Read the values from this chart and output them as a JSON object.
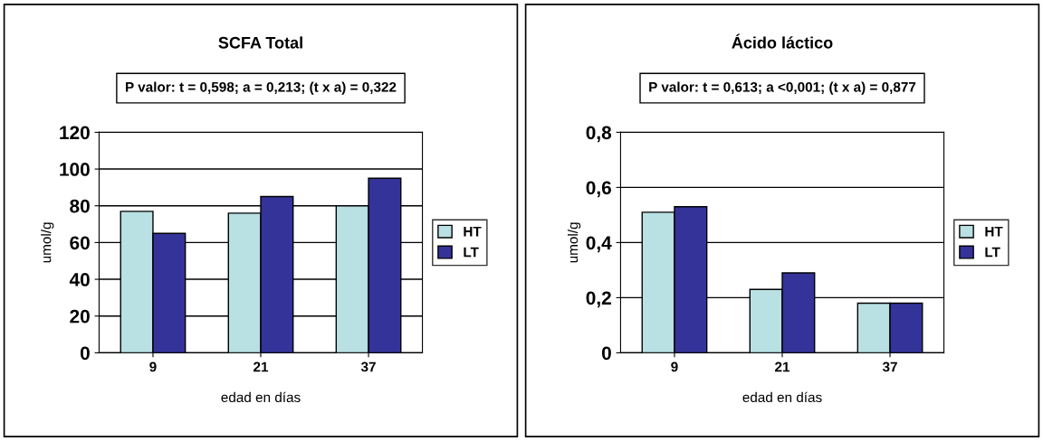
{
  "chart_data": [
    {
      "type": "bar",
      "title": "SCFA Total",
      "subtitle": "P valor: t = 0,598; a = 0,213; (t x a) = 0,322",
      "xlabel": "edad en días",
      "ylabel": "umol/g",
      "categories": [
        "9",
        "21",
        "37"
      ],
      "series": [
        {
          "name": "HT",
          "color": "#b9e0e3",
          "values": [
            77,
            76,
            80
          ]
        },
        {
          "name": "LT",
          "color": "#333399",
          "values": [
            65,
            85,
            95
          ]
        }
      ],
      "ylim": [
        0,
        120
      ],
      "yticks": [
        0,
        20,
        40,
        60,
        80,
        100,
        120
      ],
      "grid": "y",
      "legend": "right"
    },
    {
      "type": "bar",
      "title": "Ácido láctico",
      "subtitle": "P valor: t = 0,613; a <0,001; (t x a) = 0,877",
      "xlabel": "edad en días",
      "ylabel": "umol/g",
      "categories": [
        "9",
        "21",
        "37"
      ],
      "series": [
        {
          "name": "HT",
          "color": "#b9e0e3",
          "values": [
            0.51,
            0.23,
            0.18
          ]
        },
        {
          "name": "LT",
          "color": "#333399",
          "values": [
            0.53,
            0.29,
            0.18
          ]
        }
      ],
      "ylim": [
        0,
        0.8
      ],
      "yticks": [
        {
          "value": 0,
          "label": "0"
        },
        {
          "value": 0.2,
          "label": "0,2"
        },
        {
          "value": 0.4,
          "label": "0,4"
        },
        {
          "value": 0.6,
          "label": "0,6"
        },
        {
          "value": 0.8,
          "label": "0,8"
        }
      ],
      "grid": "y",
      "legend": "right"
    }
  ]
}
